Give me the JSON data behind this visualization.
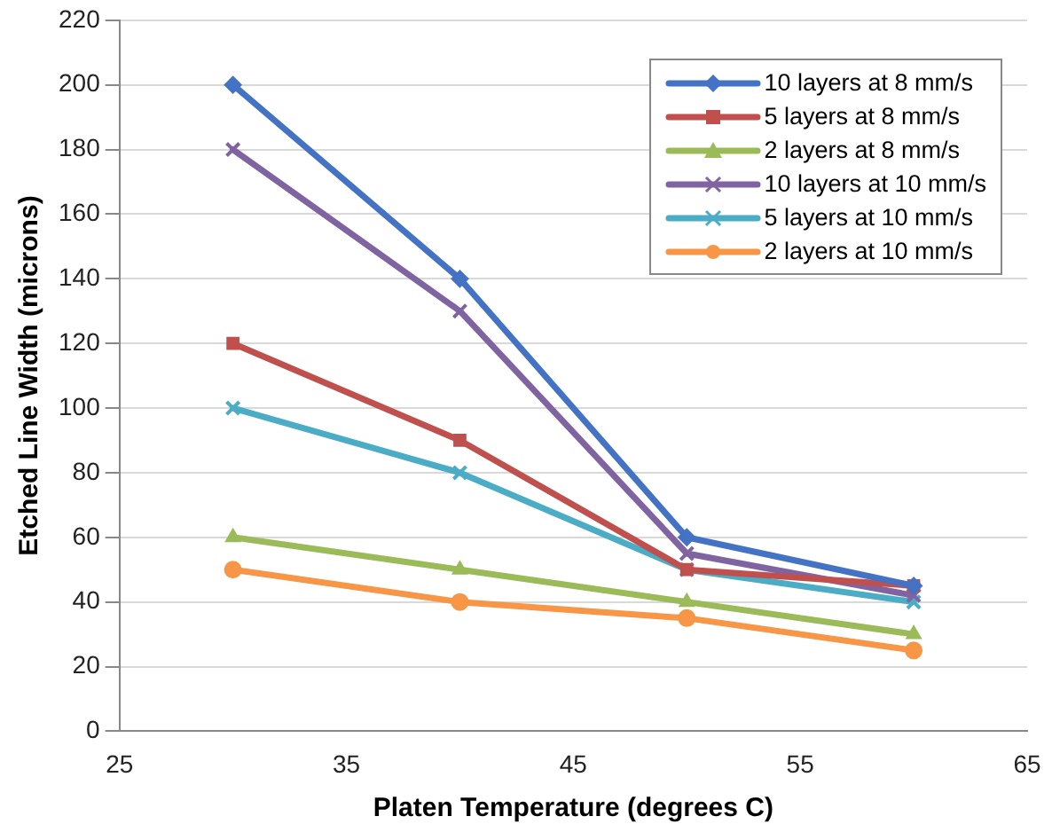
{
  "chart_data": {
    "type": "line",
    "xlabel": "Platen Temperature (degrees C)",
    "ylabel": "Etched Line Width (microns)",
    "x": [
      30,
      40,
      50,
      60
    ],
    "series": [
      {
        "name": "10 layers at 8 mm/s",
        "color": "#4472c4",
        "marker": "diamond",
        "values": [
          200,
          140,
          60,
          45
        ]
      },
      {
        "name": "5 layers at 8 mm/s",
        "color": "#c0504d",
        "marker": "square",
        "values": [
          120,
          90,
          50,
          45
        ]
      },
      {
        "name": "2 layers at 8 mm/s",
        "color": "#9bbb59",
        "marker": "triangle",
        "values": [
          60,
          50,
          40,
          30
        ]
      },
      {
        "name": "10 layers at 10 mm/s",
        "color": "#8064a2",
        "marker": "cross",
        "values": [
          180,
          130,
          55,
          42
        ]
      },
      {
        "name": "5 layers at 10 mm/s",
        "color": "#4bacc6",
        "marker": "cross",
        "values": [
          100,
          80,
          50,
          40
        ]
      },
      {
        "name": "2 layers at 10 mm/s",
        "color": "#f79646",
        "marker": "circle",
        "values": [
          50,
          40,
          35,
          25
        ]
      }
    ],
    "xlim": [
      25,
      65
    ],
    "xticks": [
      25,
      35,
      45,
      55,
      65
    ],
    "ylim": [
      0,
      220
    ],
    "yticks": [
      0,
      20,
      40,
      60,
      80,
      100,
      120,
      140,
      160,
      180,
      200,
      220
    ],
    "grid": "y",
    "legend": "top right",
    "line_style": "solid"
  }
}
